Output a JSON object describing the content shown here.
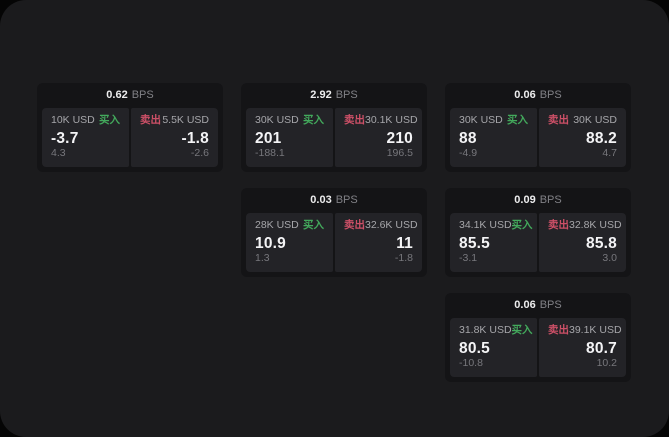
{
  "page": {
    "outer_bg": "#050505",
    "surface_bg": "#1b1b1d"
  },
  "labels": {
    "bps_unit": "BPS",
    "buy": "买入",
    "sell": "卖出"
  },
  "colors": {
    "buy_green": "#43a95c",
    "sell_red": "#cd5067",
    "card_bg": "#141416",
    "panel_bg": "#232327"
  },
  "cards": [
    {
      "row": 1,
      "col": 1,
      "bps": "0.62",
      "buy": {
        "amount": "10K USD",
        "value": "-3.7",
        "delta": "4.3"
      },
      "sell": {
        "amount": "5.5K USD",
        "value": "-1.8",
        "delta": "-2.6"
      }
    },
    {
      "row": 1,
      "col": 2,
      "bps": "2.92",
      "buy": {
        "amount": "30K USD",
        "value": "201",
        "delta": "-188.1"
      },
      "sell": {
        "amount": "30.1K USD",
        "value": "210",
        "delta": "196.5"
      }
    },
    {
      "row": 1,
      "col": 3,
      "bps": "0.06",
      "buy": {
        "amount": "30K USD",
        "value": "88",
        "delta": "-4.9"
      },
      "sell": {
        "amount": "30K USD",
        "value": "88.2",
        "delta": "4.7"
      }
    },
    {
      "row": 2,
      "col": 2,
      "bps": "0.03",
      "buy": {
        "amount": "28K USD",
        "value": "10.9",
        "delta": "1.3"
      },
      "sell": {
        "amount": "32.6K USD",
        "value": "11",
        "delta": "-1.8"
      }
    },
    {
      "row": 2,
      "col": 3,
      "bps": "0.09",
      "buy": {
        "amount": "34.1K USD",
        "value": "85.5",
        "delta": "-3.1"
      },
      "sell": {
        "amount": "32.8K USD",
        "value": "85.8",
        "delta": "3.0"
      }
    },
    {
      "row": 3,
      "col": 3,
      "bps": "0.06",
      "buy": {
        "amount": "31.8K USD",
        "value": "80.5",
        "delta": "-10.8"
      },
      "sell": {
        "amount": "39.1K USD",
        "value": "80.7",
        "delta": "10.2"
      }
    }
  ]
}
